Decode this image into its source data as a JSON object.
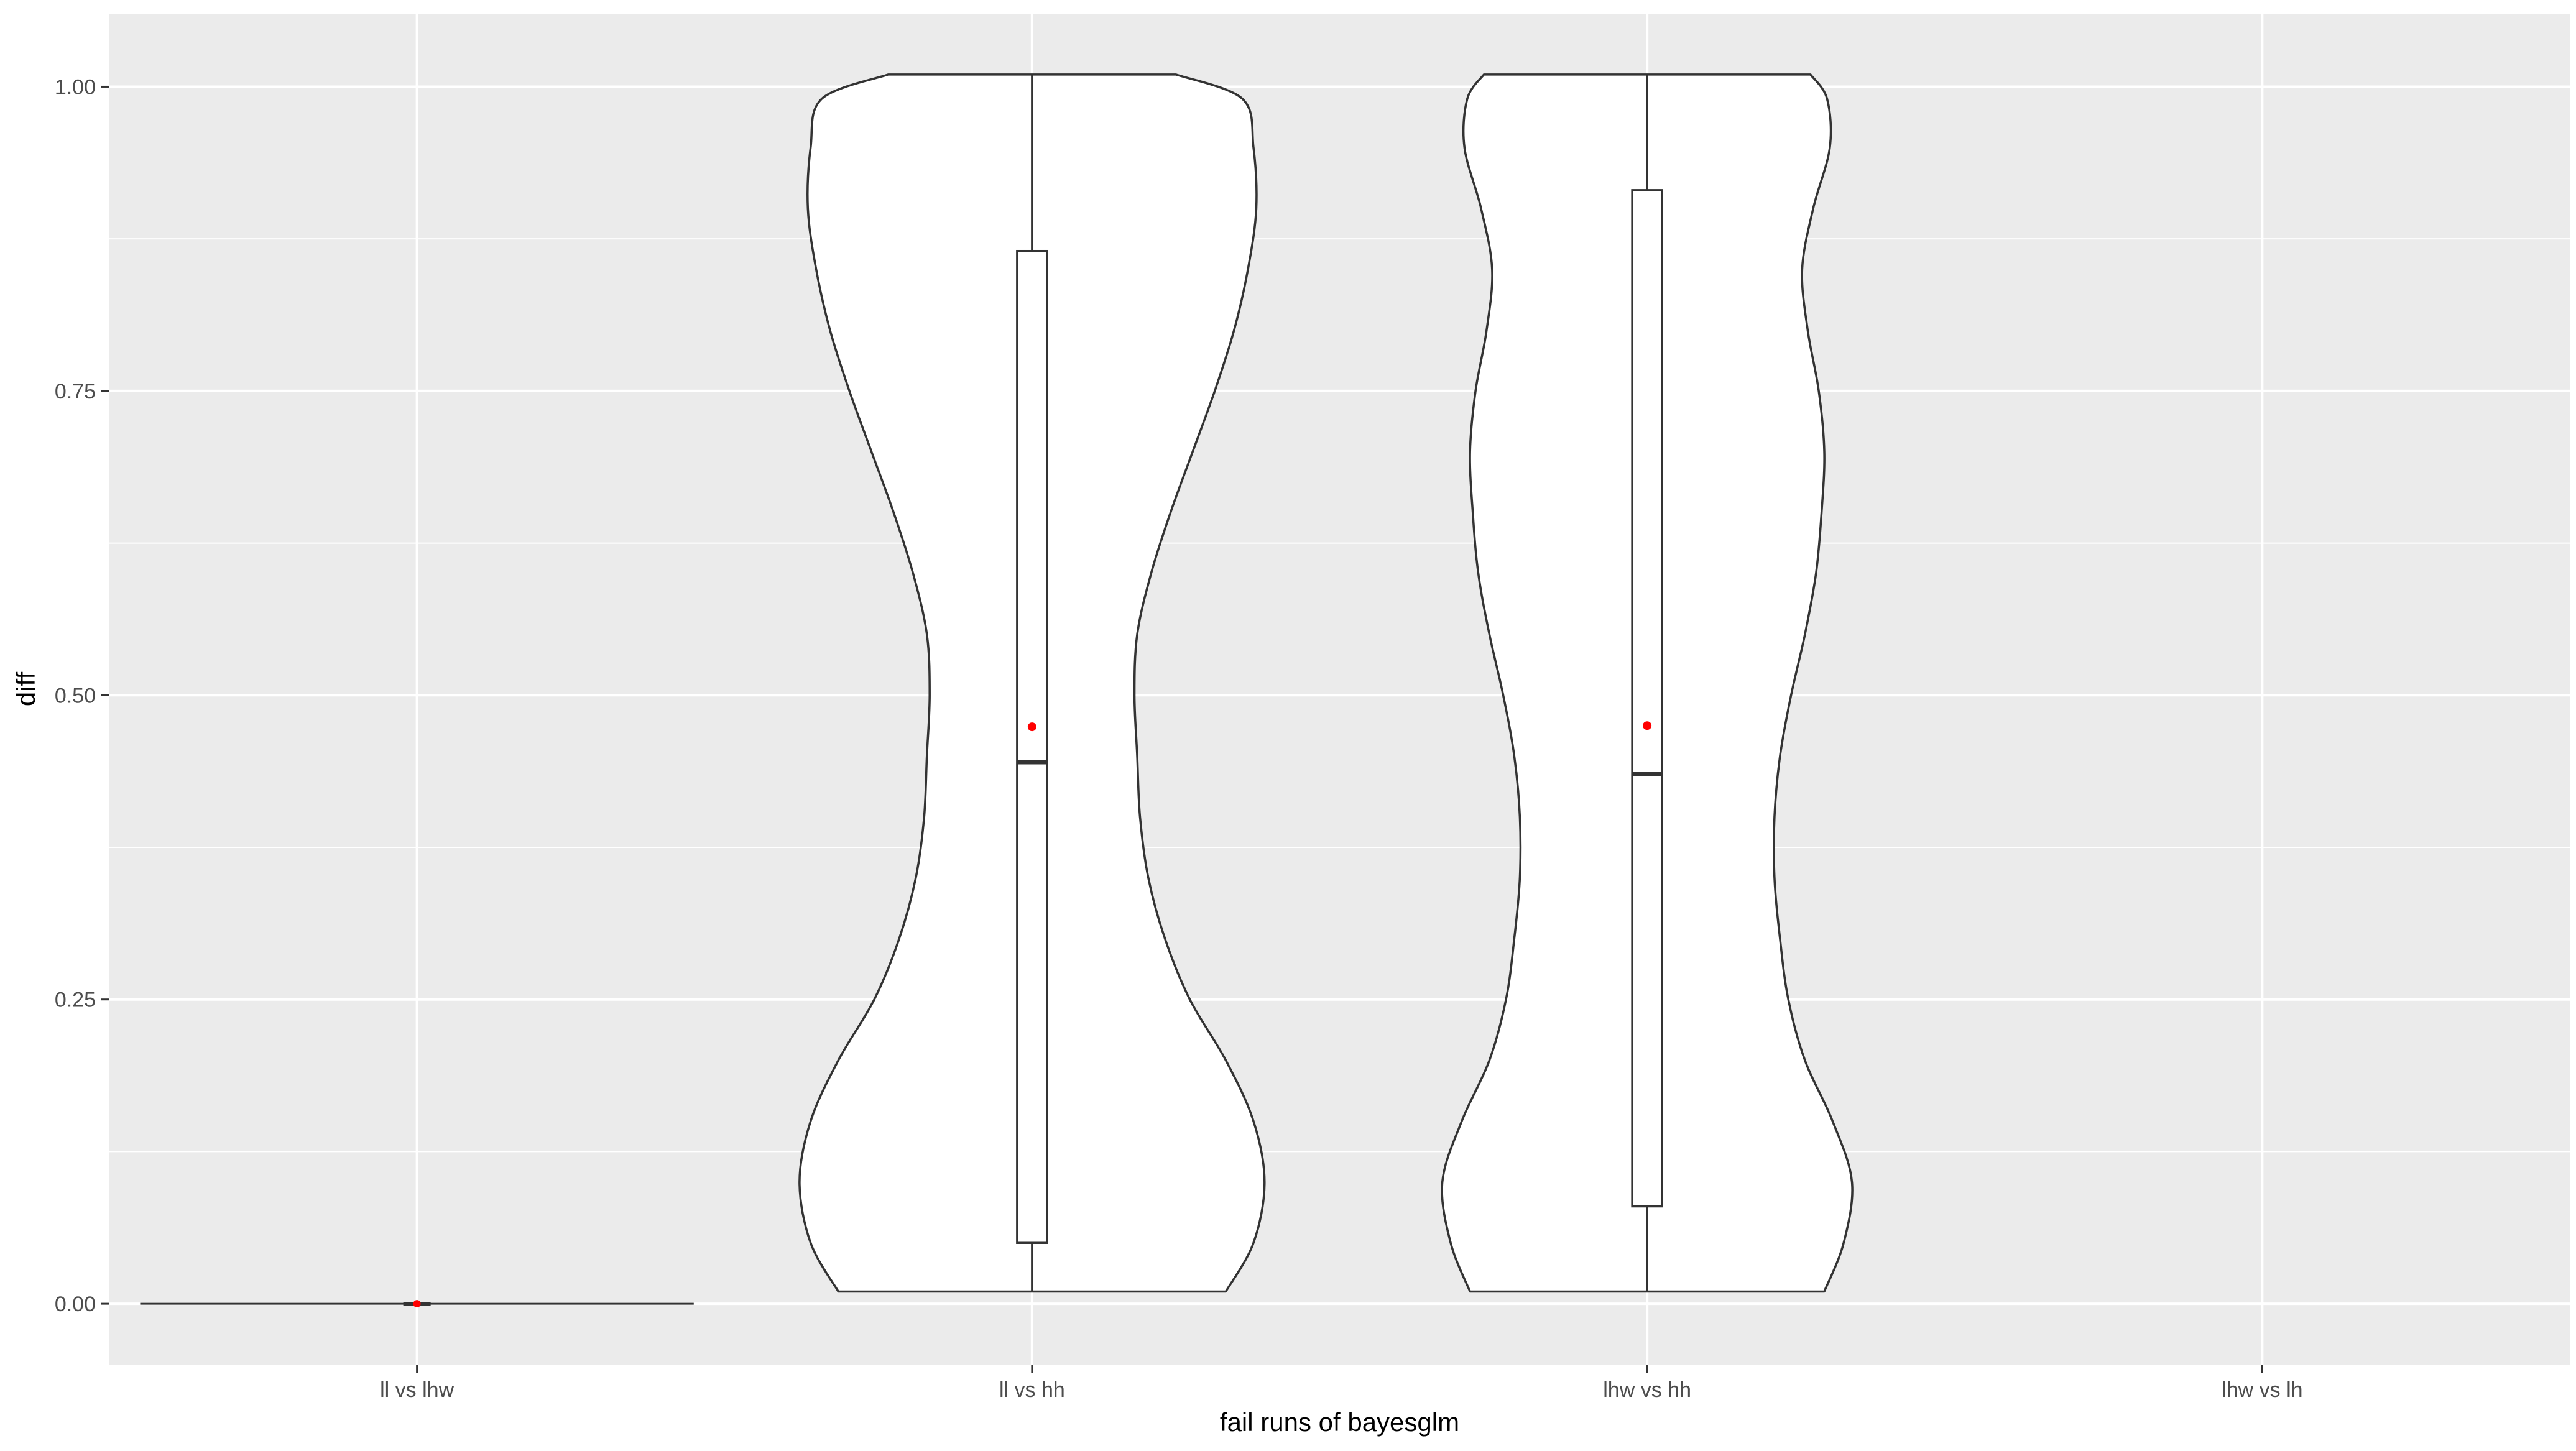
{
  "chart_data": {
    "type": "violin",
    "title": "",
    "xlabel": "fail runs of bayesglm",
    "ylabel": "diff",
    "categories": [
      "ll vs lhw",
      "ll vs hh",
      "lhw vs hh",
      "lhw vs lh"
    ],
    "ylim": [
      -0.05,
      1.06
    ],
    "yticks": [
      0.0,
      0.25,
      0.5,
      0.75,
      1.0
    ],
    "ytick_labels": [
      "0.00",
      "0.25",
      "0.50",
      "0.75",
      "1.00"
    ],
    "grid": true,
    "legend": "none",
    "colors": {
      "panel": "#EBEBEB",
      "grid": "#FFFFFF",
      "violin_fill": "#FFFFFF",
      "outline": "#333333",
      "mean_point": "#FF0000",
      "axis_text": "#4D4D4D",
      "title_text": "#000000"
    },
    "groups": [
      {
        "category": "ll vs lhw",
        "range": [
          0.0,
          0.0
        ],
        "box": {
          "min": 0.0,
          "q1": 0.0,
          "median": 0.0,
          "q3": 0.0,
          "max": 0.0
        },
        "mean": 0.0,
        "density": [
          [
            0.0,
            1.0
          ]
        ]
      },
      {
        "category": "ll vs hh",
        "range": [
          0.01,
          1.01
        ],
        "box": {
          "min": 0.01,
          "q1": 0.05,
          "median": 0.445,
          "q3": 0.865,
          "max": 1.01
        },
        "mean": 0.474,
        "density": [
          [
            0.01,
            0.7
          ],
          [
            0.05,
            0.8
          ],
          [
            0.1,
            0.84
          ],
          [
            0.15,
            0.8
          ],
          [
            0.2,
            0.7
          ],
          [
            0.25,
            0.57
          ],
          [
            0.3,
            0.48
          ],
          [
            0.35,
            0.42
          ],
          [
            0.4,
            0.39
          ],
          [
            0.45,
            0.38
          ],
          [
            0.5,
            0.37
          ],
          [
            0.55,
            0.38
          ],
          [
            0.6,
            0.43
          ],
          [
            0.65,
            0.5
          ],
          [
            0.7,
            0.58
          ],
          [
            0.75,
            0.66
          ],
          [
            0.8,
            0.73
          ],
          [
            0.85,
            0.78
          ],
          [
            0.9,
            0.81
          ],
          [
            0.95,
            0.8
          ],
          [
            0.99,
            0.76
          ],
          [
            1.01,
            0.52
          ]
        ]
      },
      {
        "category": "lhw vs hh",
        "range": [
          0.01,
          1.01
        ],
        "box": {
          "min": 0.01,
          "q1": 0.08,
          "median": 0.435,
          "q3": 0.915,
          "max": 1.01
        },
        "mean": 0.475,
        "density": [
          [
            0.01,
            0.64
          ],
          [
            0.05,
            0.71
          ],
          [
            0.1,
            0.74
          ],
          [
            0.15,
            0.67
          ],
          [
            0.2,
            0.57
          ],
          [
            0.25,
            0.51
          ],
          [
            0.3,
            0.48
          ],
          [
            0.35,
            0.46
          ],
          [
            0.4,
            0.46
          ],
          [
            0.45,
            0.48
          ],
          [
            0.5,
            0.52
          ],
          [
            0.55,
            0.57
          ],
          [
            0.6,
            0.61
          ],
          [
            0.65,
            0.63
          ],
          [
            0.7,
            0.64
          ],
          [
            0.75,
            0.62
          ],
          [
            0.8,
            0.58
          ],
          [
            0.85,
            0.56
          ],
          [
            0.9,
            0.6
          ],
          [
            0.95,
            0.66
          ],
          [
            0.99,
            0.65
          ],
          [
            1.01,
            0.59
          ]
        ]
      }
    ]
  }
}
